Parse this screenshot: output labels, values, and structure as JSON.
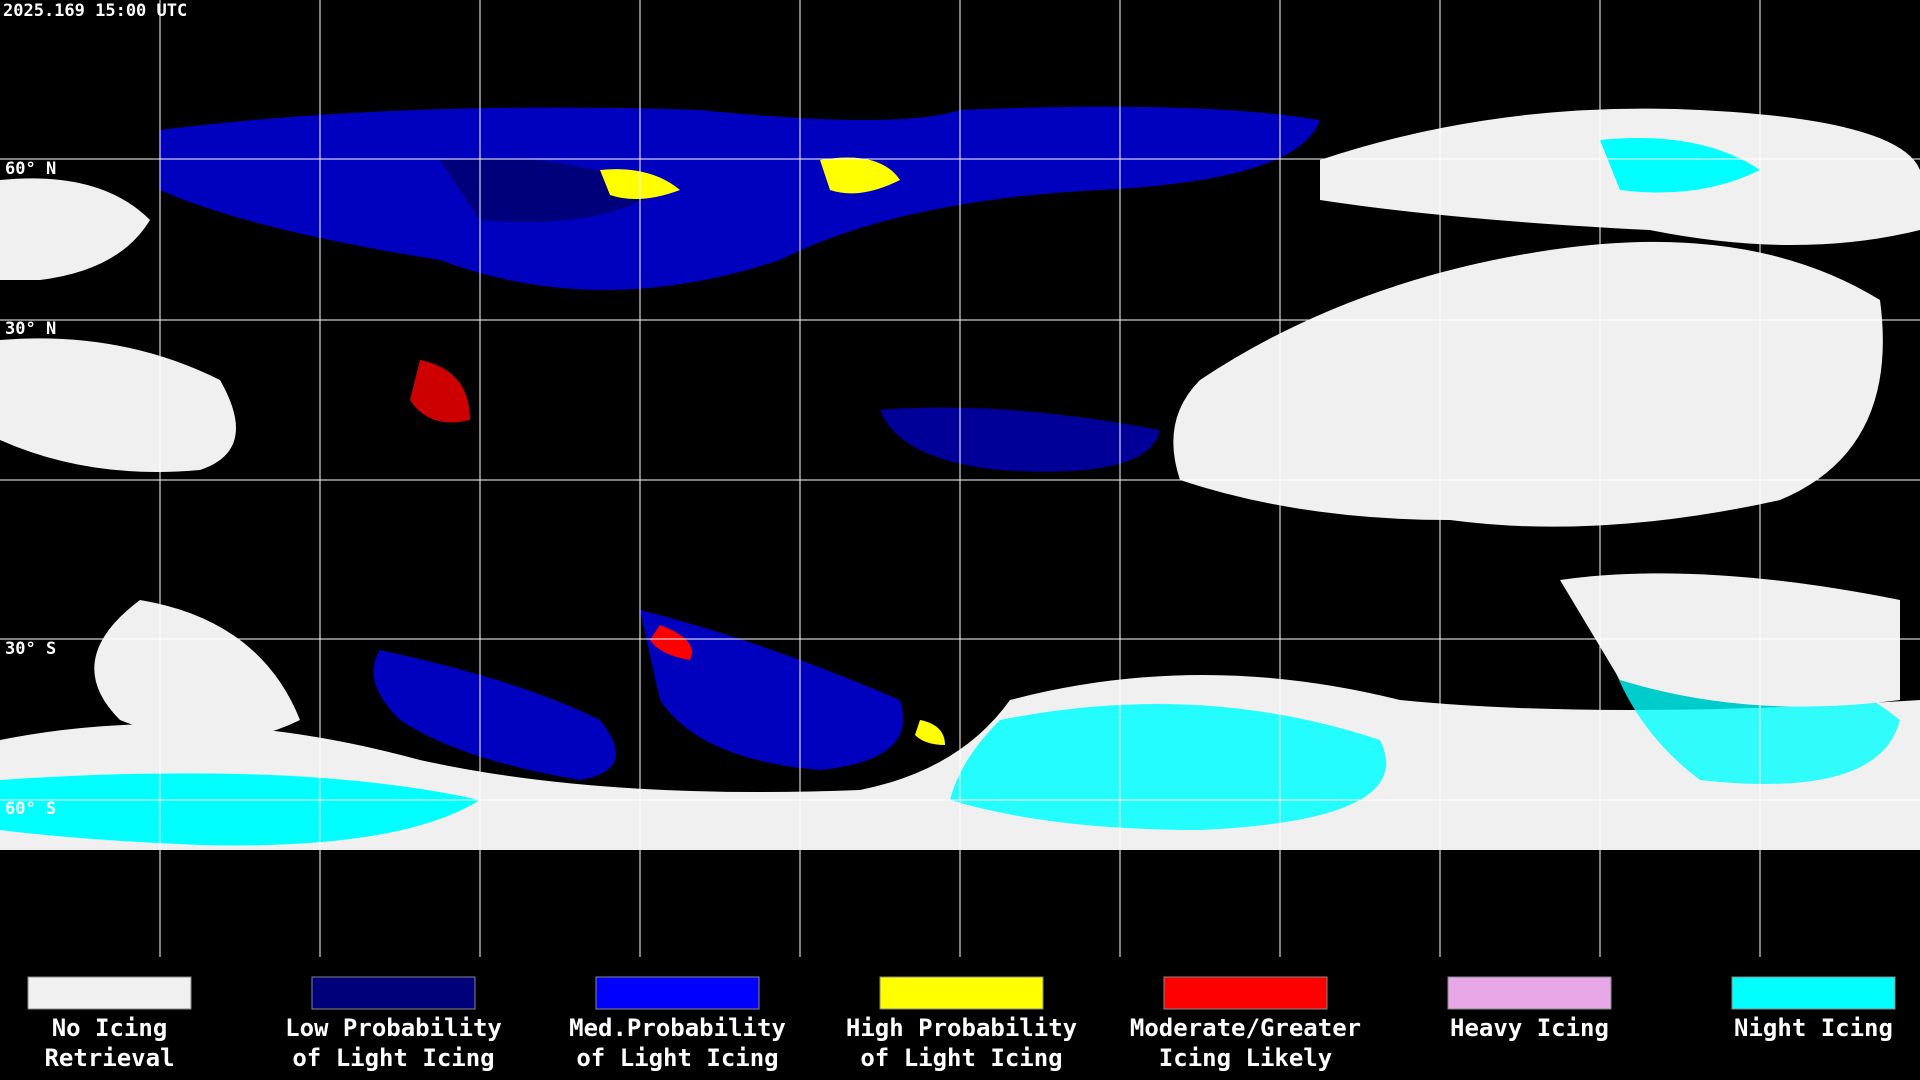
{
  "timestamp": "2025.169 15:00 UTC",
  "latitude_labels": [
    "60° N",
    "30° N",
    "30° S",
    "60° S"
  ],
  "legend": [
    {
      "line1": "No Icing",
      "line2": "Retrieval",
      "color": "#f0f0f0"
    },
    {
      "line1": "Low Probability",
      "line2": "of Light Icing",
      "color": "#00007a"
    },
    {
      "line1": "Med.Probability",
      "line2": "of Light Icing",
      "color": "#0000ff"
    },
    {
      "line1": "High Probability",
      "line2": "of Light Icing",
      "color": "#ffff00"
    },
    {
      "line1": "Moderate/Greater",
      "line2": "Icing Likely",
      "color": "#ff0000"
    },
    {
      "line1": "Heavy Icing",
      "line2": "",
      "color": "#e8a8e8"
    },
    {
      "line1": "Night Icing",
      "line2": "",
      "color": "#00ffff"
    }
  ]
}
